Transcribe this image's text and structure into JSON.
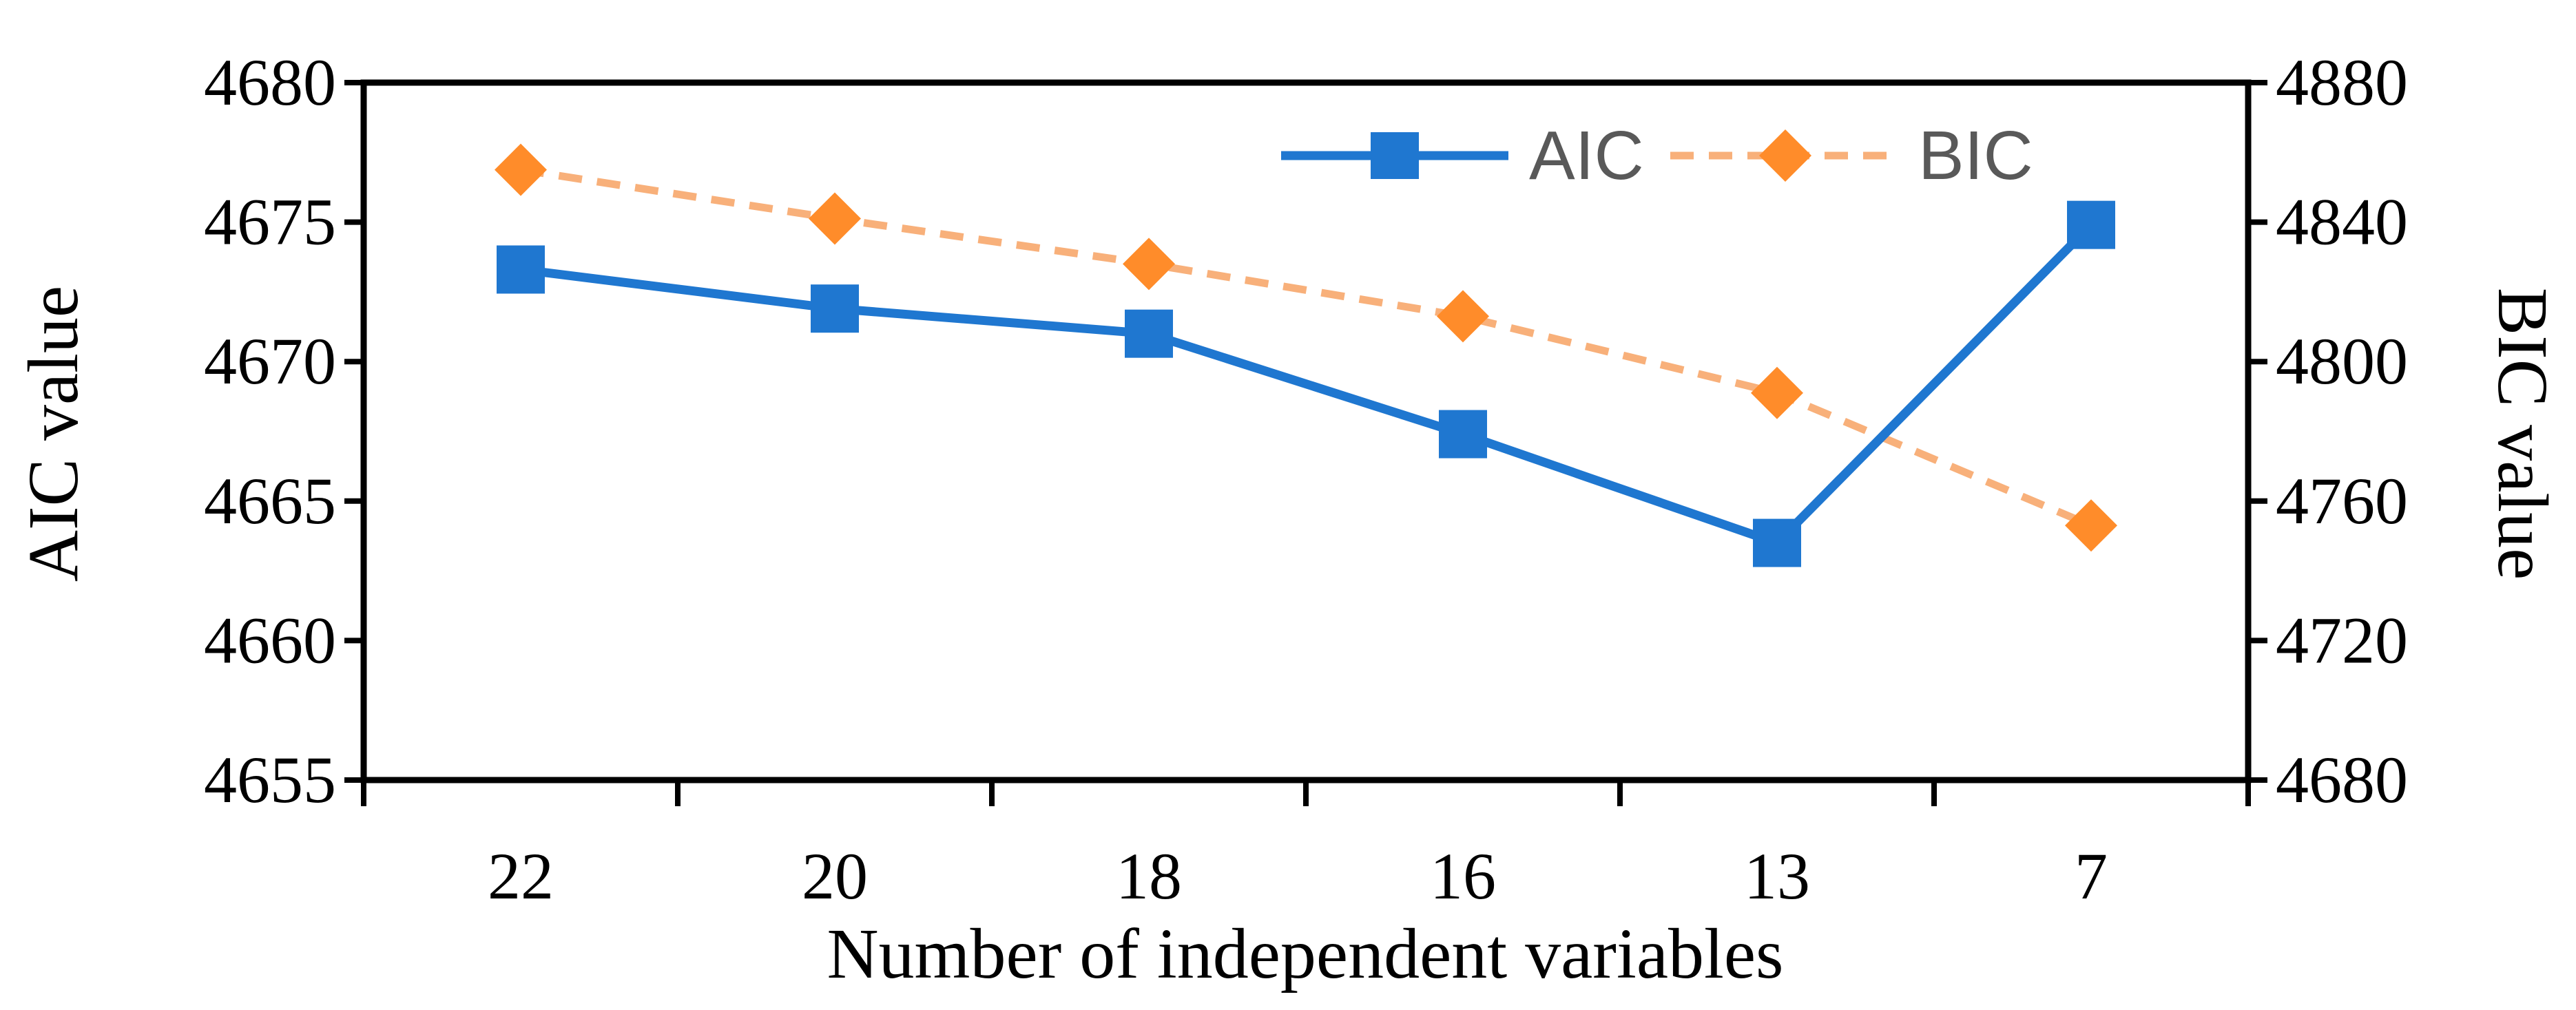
{
  "chart_data": {
    "type": "line",
    "title": "",
    "xlabel": "Number of independent variables",
    "ylabel": "AIC value",
    "y2label": "BIC value",
    "categories": [
      "22",
      "20",
      "18",
      "16",
      "13",
      "7"
    ],
    "ylim": [
      4655,
      4680
    ],
    "y2lim": [
      4680,
      4880
    ],
    "yticks": [
      4655,
      4660,
      4665,
      4670,
      4675,
      4680
    ],
    "y2ticks": [
      4680,
      4720,
      4760,
      4800,
      4840,
      4880
    ],
    "legend_position": "top-right",
    "series": [
      {
        "name": "AIC",
        "axis": "left",
        "color": "#1f77d0",
        "marker": "square",
        "line": "solid",
        "values": [
          4673.3,
          4671.9,
          4671.0,
          4667.4,
          4663.5,
          4674.9
        ]
      },
      {
        "name": "BIC",
        "axis": "right",
        "color": "#ff8c2a",
        "line_color": "#f8b07a",
        "marker": "diamond",
        "line": "dashed",
        "values": [
          4855,
          4841,
          4828,
          4813,
          4791,
          4753
        ]
      }
    ]
  }
}
